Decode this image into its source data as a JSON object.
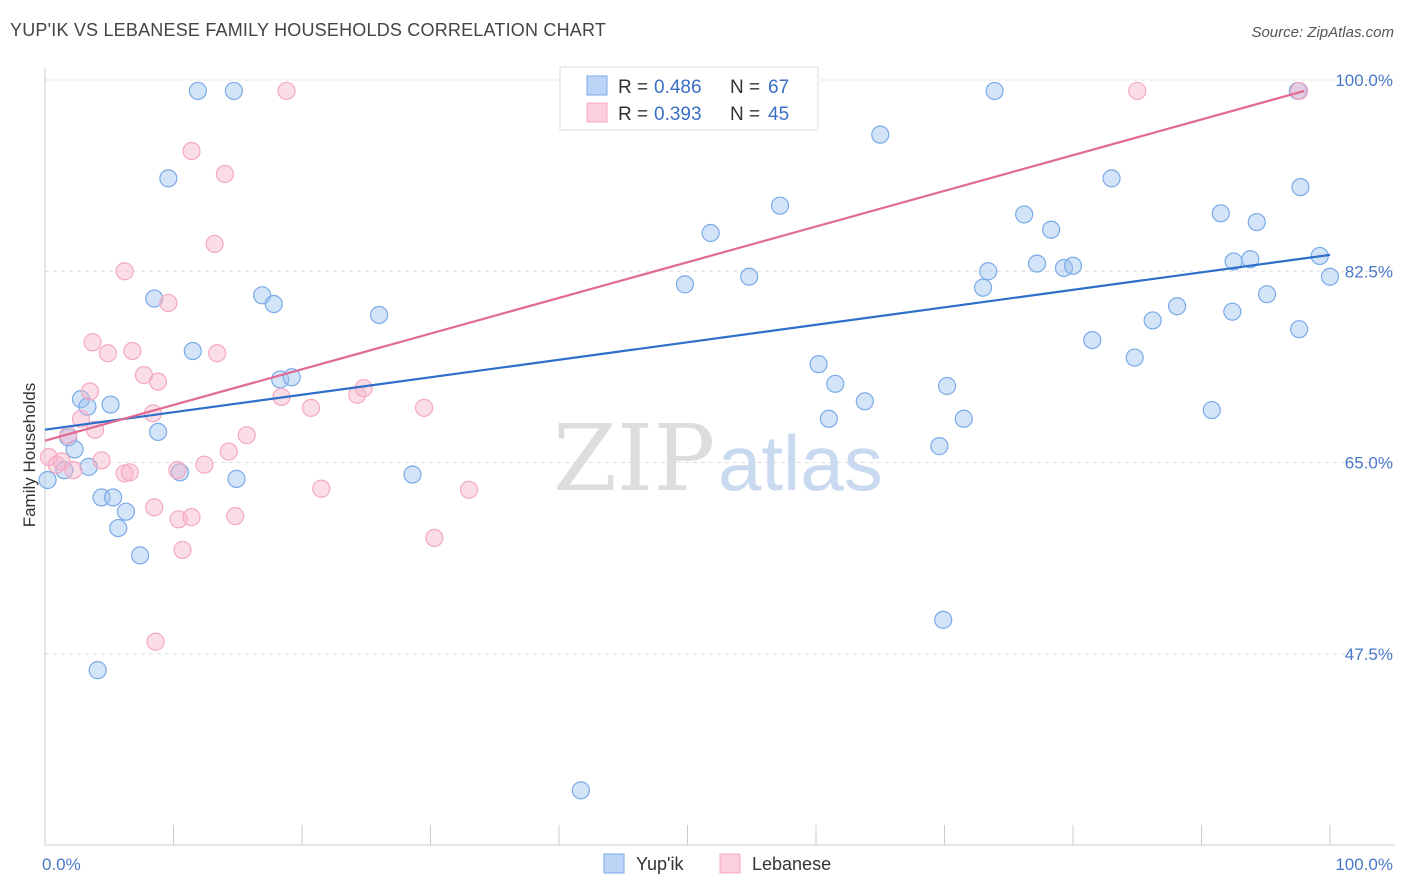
{
  "title": "YUP'IK VS LEBANESE FAMILY HOUSEHOLDS CORRELATION CHART",
  "source": "Source: ZipAtlas.com",
  "watermark": {
    "zip": "ZIP",
    "atlas": "atlas"
  },
  "legend": [
    {
      "r_label": "R =",
      "r_value": "0.486",
      "n_label": "N =",
      "n_value": "67"
    },
    {
      "r_label": "R =",
      "r_value": "0.393",
      "n_label": "N =",
      "n_value": "45"
    }
  ],
  "chart_data": {
    "type": "scatter",
    "title": "YUP'IK VS LEBANESE FAMILY HOUSEHOLDS CORRELATION CHART",
    "xlabel": "",
    "ylabel": "Family Households",
    "xlim": [
      0,
      100
    ],
    "ylim": [
      30,
      100
    ],
    "x_tick_labels": [
      "0.0%",
      "100.0%"
    ],
    "y_ticks": [
      47.5,
      65.0,
      82.5,
      100.0
    ],
    "y_tick_labels": [
      "47.5%",
      "65.0%",
      "82.5%",
      "100.0%"
    ],
    "grid": true,
    "legend_position": "top-center",
    "series": [
      {
        "name": "Yup'ik",
        "color": "#7aaae8",
        "line_color": "#2e6fca",
        "trend": {
          "x": [
            0,
            100
          ],
          "y": [
            68.0,
            84.0
          ]
        },
        "points": [
          [
            0.2,
            63.4
          ],
          [
            1.5,
            64.3
          ],
          [
            1.8,
            67.3
          ],
          [
            2.3,
            66.2
          ],
          [
            2.8,
            70.8
          ],
          [
            3.3,
            70.1
          ],
          [
            3.4,
            64.6
          ],
          [
            4.1,
            46.0
          ],
          [
            4.4,
            61.8
          ],
          [
            5.1,
            70.3
          ],
          [
            5.3,
            61.8
          ],
          [
            5.7,
            59.0
          ],
          [
            6.3,
            60.5
          ],
          [
            7.4,
            56.5
          ],
          [
            8.5,
            80.0
          ],
          [
            8.8,
            67.8
          ],
          [
            9.6,
            91.0
          ],
          [
            10.5,
            64.1
          ],
          [
            11.5,
            75.2
          ],
          [
            11.9,
            99.0
          ],
          [
            14.7,
            99.0
          ],
          [
            14.9,
            63.5
          ],
          [
            16.9,
            80.3
          ],
          [
            17.8,
            79.5
          ],
          [
            18.3,
            72.6
          ],
          [
            19.2,
            72.8
          ],
          [
            26.0,
            78.5
          ],
          [
            28.6,
            63.9
          ],
          [
            41.7,
            35.0
          ],
          [
            49.8,
            81.3
          ],
          [
            51.8,
            86.0
          ],
          [
            54.8,
            82.0
          ],
          [
            57.2,
            88.5
          ],
          [
            60.2,
            74.0
          ],
          [
            61.0,
            69.0
          ],
          [
            61.5,
            72.2
          ],
          [
            63.8,
            70.6
          ],
          [
            65.0,
            95.0
          ],
          [
            69.6,
            66.5
          ],
          [
            69.9,
            50.6
          ],
          [
            70.2,
            72.0
          ],
          [
            71.5,
            69.0
          ],
          [
            73.9,
            99.0
          ],
          [
            73.0,
            81.0
          ],
          [
            73.4,
            82.5
          ],
          [
            76.2,
            87.7
          ],
          [
            77.2,
            83.2
          ],
          [
            78.3,
            86.3
          ],
          [
            79.3,
            82.8
          ],
          [
            80.0,
            83.0
          ],
          [
            81.5,
            76.2
          ],
          [
            83.0,
            91.0
          ],
          [
            84.8,
            74.6
          ],
          [
            86.2,
            78.0
          ],
          [
            88.1,
            79.3
          ],
          [
            90.8,
            69.8
          ],
          [
            91.5,
            87.8
          ],
          [
            92.4,
            78.8
          ],
          [
            92.5,
            83.4
          ],
          [
            93.8,
            83.6
          ],
          [
            94.3,
            87.0
          ],
          [
            95.1,
            80.4
          ],
          [
            97.6,
            77.2
          ],
          [
            97.7,
            90.2
          ],
          [
            97.5,
            99.0
          ],
          [
            99.2,
            83.9
          ],
          [
            100.0,
            82.0
          ]
        ]
      },
      {
        "name": "Lebanese",
        "color": "#f4a9c0",
        "line_color": "#e06a93",
        "trend": {
          "x": [
            0,
            98
          ],
          "y": [
            67.0,
            99.0
          ]
        },
        "points": [
          [
            0.3,
            65.5
          ],
          [
            0.9,
            64.8
          ],
          [
            1.3,
            65.1
          ],
          [
            1.8,
            67.5
          ],
          [
            2.2,
            64.3
          ],
          [
            2.8,
            69.0
          ],
          [
            3.7,
            76.0
          ],
          [
            3.5,
            71.5
          ],
          [
            3.9,
            68.0
          ],
          [
            4.4,
            65.2
          ],
          [
            4.9,
            75.0
          ],
          [
            6.2,
            64.0
          ],
          [
            6.6,
            64.1
          ],
          [
            6.2,
            82.5
          ],
          [
            6.8,
            75.2
          ],
          [
            7.7,
            73.0
          ],
          [
            8.4,
            69.5
          ],
          [
            8.8,
            72.4
          ],
          [
            8.5,
            60.9
          ],
          [
            8.6,
            48.6
          ],
          [
            9.6,
            79.6
          ],
          [
            10.3,
            64.3
          ],
          [
            10.4,
            59.8
          ],
          [
            10.7,
            57.0
          ],
          [
            11.4,
            60.0
          ],
          [
            11.4,
            93.5
          ],
          [
            12.4,
            64.8
          ],
          [
            13.2,
            85.0
          ],
          [
            13.4,
            75.0
          ],
          [
            14.0,
            91.4
          ],
          [
            14.3,
            66.0
          ],
          [
            14.8,
            60.1
          ],
          [
            15.7,
            67.5
          ],
          [
            18.4,
            71.0
          ],
          [
            18.8,
            99.0
          ],
          [
            20.7,
            70.0
          ],
          [
            21.5,
            62.6
          ],
          [
            24.3,
            71.2
          ],
          [
            24.8,
            71.8
          ],
          [
            29.5,
            70.0
          ],
          [
            30.3,
            58.1
          ],
          [
            33.0,
            62.5
          ],
          [
            44.5,
            99.0
          ],
          [
            85.0,
            99.0
          ],
          [
            97.6,
            99.0
          ]
        ]
      }
    ]
  }
}
